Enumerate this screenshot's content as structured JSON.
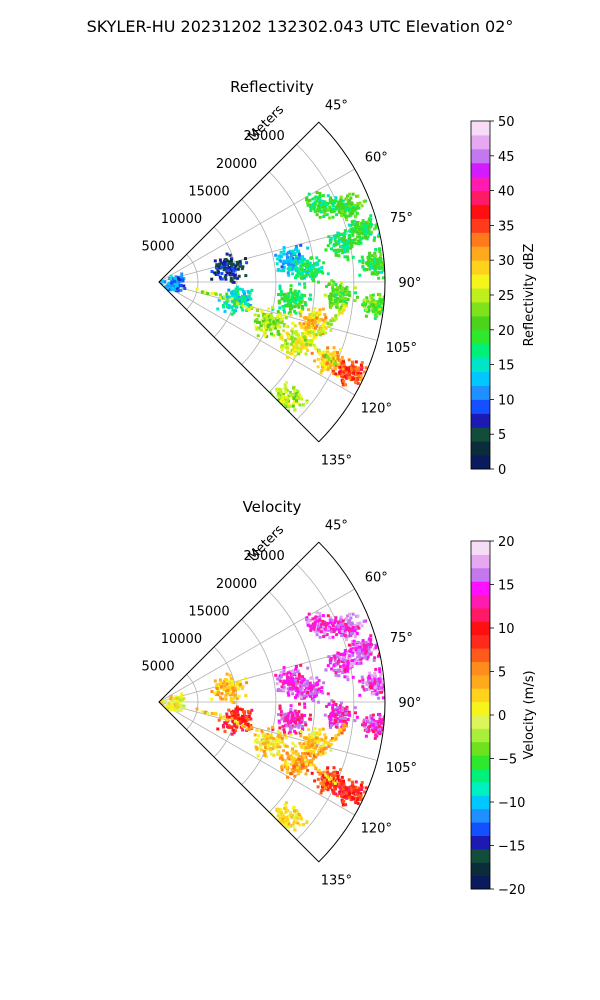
{
  "figure_title": "SKYLER-HU  20231202  132302.043 UTC Elevation 02°",
  "chart_data": [
    {
      "type": "heatmap",
      "subtype": "radar-sector-ppi",
      "title": "Reflectivity",
      "radial_axis_label": "Meters",
      "radial_ticks": [
        "5000",
        "10000",
        "15000",
        "20000",
        "25000"
      ],
      "radial_tick_values": [
        5000,
        10000,
        15000,
        20000,
        25000
      ],
      "rmax": 29000,
      "angle_ticks": [
        "45°",
        "60°",
        "75°",
        "90°",
        "105°",
        "120°",
        "135°"
      ],
      "angle_tick_values": [
        45,
        60,
        75,
        90,
        105,
        120,
        135
      ],
      "theta_range": [
        45,
        135
      ],
      "colorbar": {
        "label": "Reflectivity dBZ",
        "ticks": [
          "0",
          "5",
          "10",
          "15",
          "20",
          "25",
          "30",
          "35",
          "40",
          "45",
          "50"
        ],
        "tick_values": [
          0,
          5,
          10,
          15,
          20,
          25,
          30,
          35,
          40,
          45,
          50
        ],
        "vmin": 0,
        "vmax": 50,
        "colormap": "pyart_HomeyerRainbow"
      },
      "echo_regions": [
        {
          "az": 64,
          "range_m": 23000,
          "value": 19
        },
        {
          "az": 68,
          "range_m": 26000,
          "value": 20
        },
        {
          "az": 75,
          "range_m": 27000,
          "value": 19
        },
        {
          "az": 78,
          "range_m": 24000,
          "value": 18
        },
        {
          "az": 80,
          "range_m": 17000,
          "value": 13
        },
        {
          "az": 85,
          "range_m": 19000,
          "value": 17
        },
        {
          "az": 85,
          "range_m": 28000,
          "value": 19
        },
        {
          "az": 94,
          "range_m": 23000,
          "value": 21
        },
        {
          "az": 97,
          "range_m": 17000,
          "value": 19
        },
        {
          "az": 96,
          "range_m": 28000,
          "value": 21
        },
        {
          "az": 102,
          "range_m": 10000,
          "value": 15
        },
        {
          "az": 104,
          "range_m": 20000,
          "value": 29
        },
        {
          "az": 110,
          "range_m": 15000,
          "value": 24
        },
        {
          "az": 113,
          "range_m": 19000,
          "value": 26
        },
        {
          "az": 115,
          "range_m": 24000,
          "value": 30
        },
        {
          "az": 115,
          "range_m": 27000,
          "value": 35
        },
        {
          "az": 132,
          "range_m": 22000,
          "value": 24
        },
        {
          "az": 88,
          "range_m": 2000,
          "value": 10
        },
        {
          "az": 95,
          "range_m": 1500,
          "value": 12
        },
        {
          "az": 77,
          "range_m": 9000,
          "value": 6
        }
      ]
    },
    {
      "type": "heatmap",
      "subtype": "radar-sector-ppi",
      "title": "Velocity",
      "radial_axis_label": "Meters",
      "radial_ticks": [
        "5000",
        "10000",
        "15000",
        "20000",
        "25000"
      ],
      "radial_tick_values": [
        5000,
        10000,
        15000,
        20000,
        25000
      ],
      "rmax": 29000,
      "angle_ticks": [
        "45°",
        "60°",
        "75°",
        "90°",
        "105°",
        "120°",
        "135°"
      ],
      "angle_tick_values": [
        45,
        60,
        75,
        90,
        105,
        120,
        135
      ],
      "theta_range": [
        45,
        135
      ],
      "colorbar": {
        "label": "Velocity (m/s)",
        "ticks": [
          "−20",
          "−15",
          "−10",
          "−5",
          "0",
          "5",
          "10",
          "15",
          "20"
        ],
        "tick_values": [
          -20,
          -15,
          -10,
          -5,
          0,
          5,
          10,
          15,
          20
        ],
        "vmin": -20,
        "vmax": 20,
        "colormap": "pyart_BuDRd18"
      },
      "echo_regions": [
        {
          "az": 64,
          "range_m": 23000,
          "value": 15
        },
        {
          "az": 68,
          "range_m": 26000,
          "value": 15
        },
        {
          "az": 75,
          "range_m": 27000,
          "value": 15
        },
        {
          "az": 78,
          "range_m": 24000,
          "value": 15
        },
        {
          "az": 80,
          "range_m": 17000,
          "value": 15
        },
        {
          "az": 85,
          "range_m": 19000,
          "value": 15
        },
        {
          "az": 85,
          "range_m": 28000,
          "value": 15
        },
        {
          "az": 94,
          "range_m": 23000,
          "value": 14
        },
        {
          "az": 97,
          "range_m": 17000,
          "value": 14
        },
        {
          "az": 96,
          "range_m": 28000,
          "value": 14
        },
        {
          "az": 102,
          "range_m": 10000,
          "value": 9
        },
        {
          "az": 104,
          "range_m": 20000,
          "value": 2
        },
        {
          "az": 110,
          "range_m": 15000,
          "value": 2
        },
        {
          "az": 113,
          "range_m": 19000,
          "value": 4
        },
        {
          "az": 115,
          "range_m": 24000,
          "value": 8
        },
        {
          "az": 115,
          "range_m": 27000,
          "value": 9
        },
        {
          "az": 132,
          "range_m": 22000,
          "value": 1
        },
        {
          "az": 88,
          "range_m": 2000,
          "value": 0
        },
        {
          "az": 95,
          "range_m": 1500,
          "value": 1
        },
        {
          "az": 77,
          "range_m": 9000,
          "value": 3
        }
      ]
    }
  ]
}
